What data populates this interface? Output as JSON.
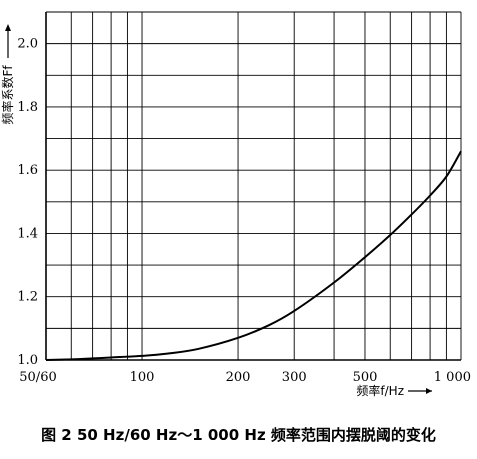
{
  "caption": "图 2   50 Hz/60 Hz～1 000 Hz 频率范围内摆脱阈的变化",
  "chart_data": {
    "type": "line",
    "xscale": "log",
    "xlabel": "频率f/Hz",
    "ylabel": "频率系数Ff",
    "xlim": [
      50,
      1000
    ],
    "ylim": [
      1.0,
      2.1
    ],
    "x_ticks": [
      {
        "value": 50,
        "label": "50/60"
      },
      {
        "value": 100,
        "label": "100"
      },
      {
        "value": 200,
        "label": "200"
      },
      {
        "value": 300,
        "label": "300"
      },
      {
        "value": 500,
        "label": "500"
      },
      {
        "value": 1000,
        "label": "1 000"
      }
    ],
    "x_gridlines": [
      50,
      60,
      70,
      80,
      90,
      100,
      200,
      300,
      400,
      500,
      600,
      700,
      800,
      900,
      1000
    ],
    "y_ticks": [
      {
        "value": 1.0,
        "label": "1.0"
      },
      {
        "value": 1.2,
        "label": "1.2"
      },
      {
        "value": 1.4,
        "label": "1.4"
      },
      {
        "value": 1.6,
        "label": "1.6"
      },
      {
        "value": 1.8,
        "label": "1.8"
      },
      {
        "value": 2.0,
        "label": "2.0"
      }
    ],
    "y_gridlines": [
      1.0,
      1.1,
      1.2,
      1.3,
      1.4,
      1.5,
      1.6,
      1.7,
      1.8,
      1.9,
      2.0,
      2.1
    ],
    "grid": true,
    "series": [
      {
        "x": [
          50,
          60,
          70,
          80,
          100,
          120,
          150,
          200,
          250,
          300,
          400,
          500,
          600,
          700,
          800,
          900,
          1000
        ],
        "values": [
          1.0,
          1.002,
          1.005,
          1.008,
          1.013,
          1.02,
          1.035,
          1.07,
          1.11,
          1.155,
          1.245,
          1.325,
          1.395,
          1.46,
          1.52,
          1.58,
          1.66
        ]
      }
    ]
  }
}
